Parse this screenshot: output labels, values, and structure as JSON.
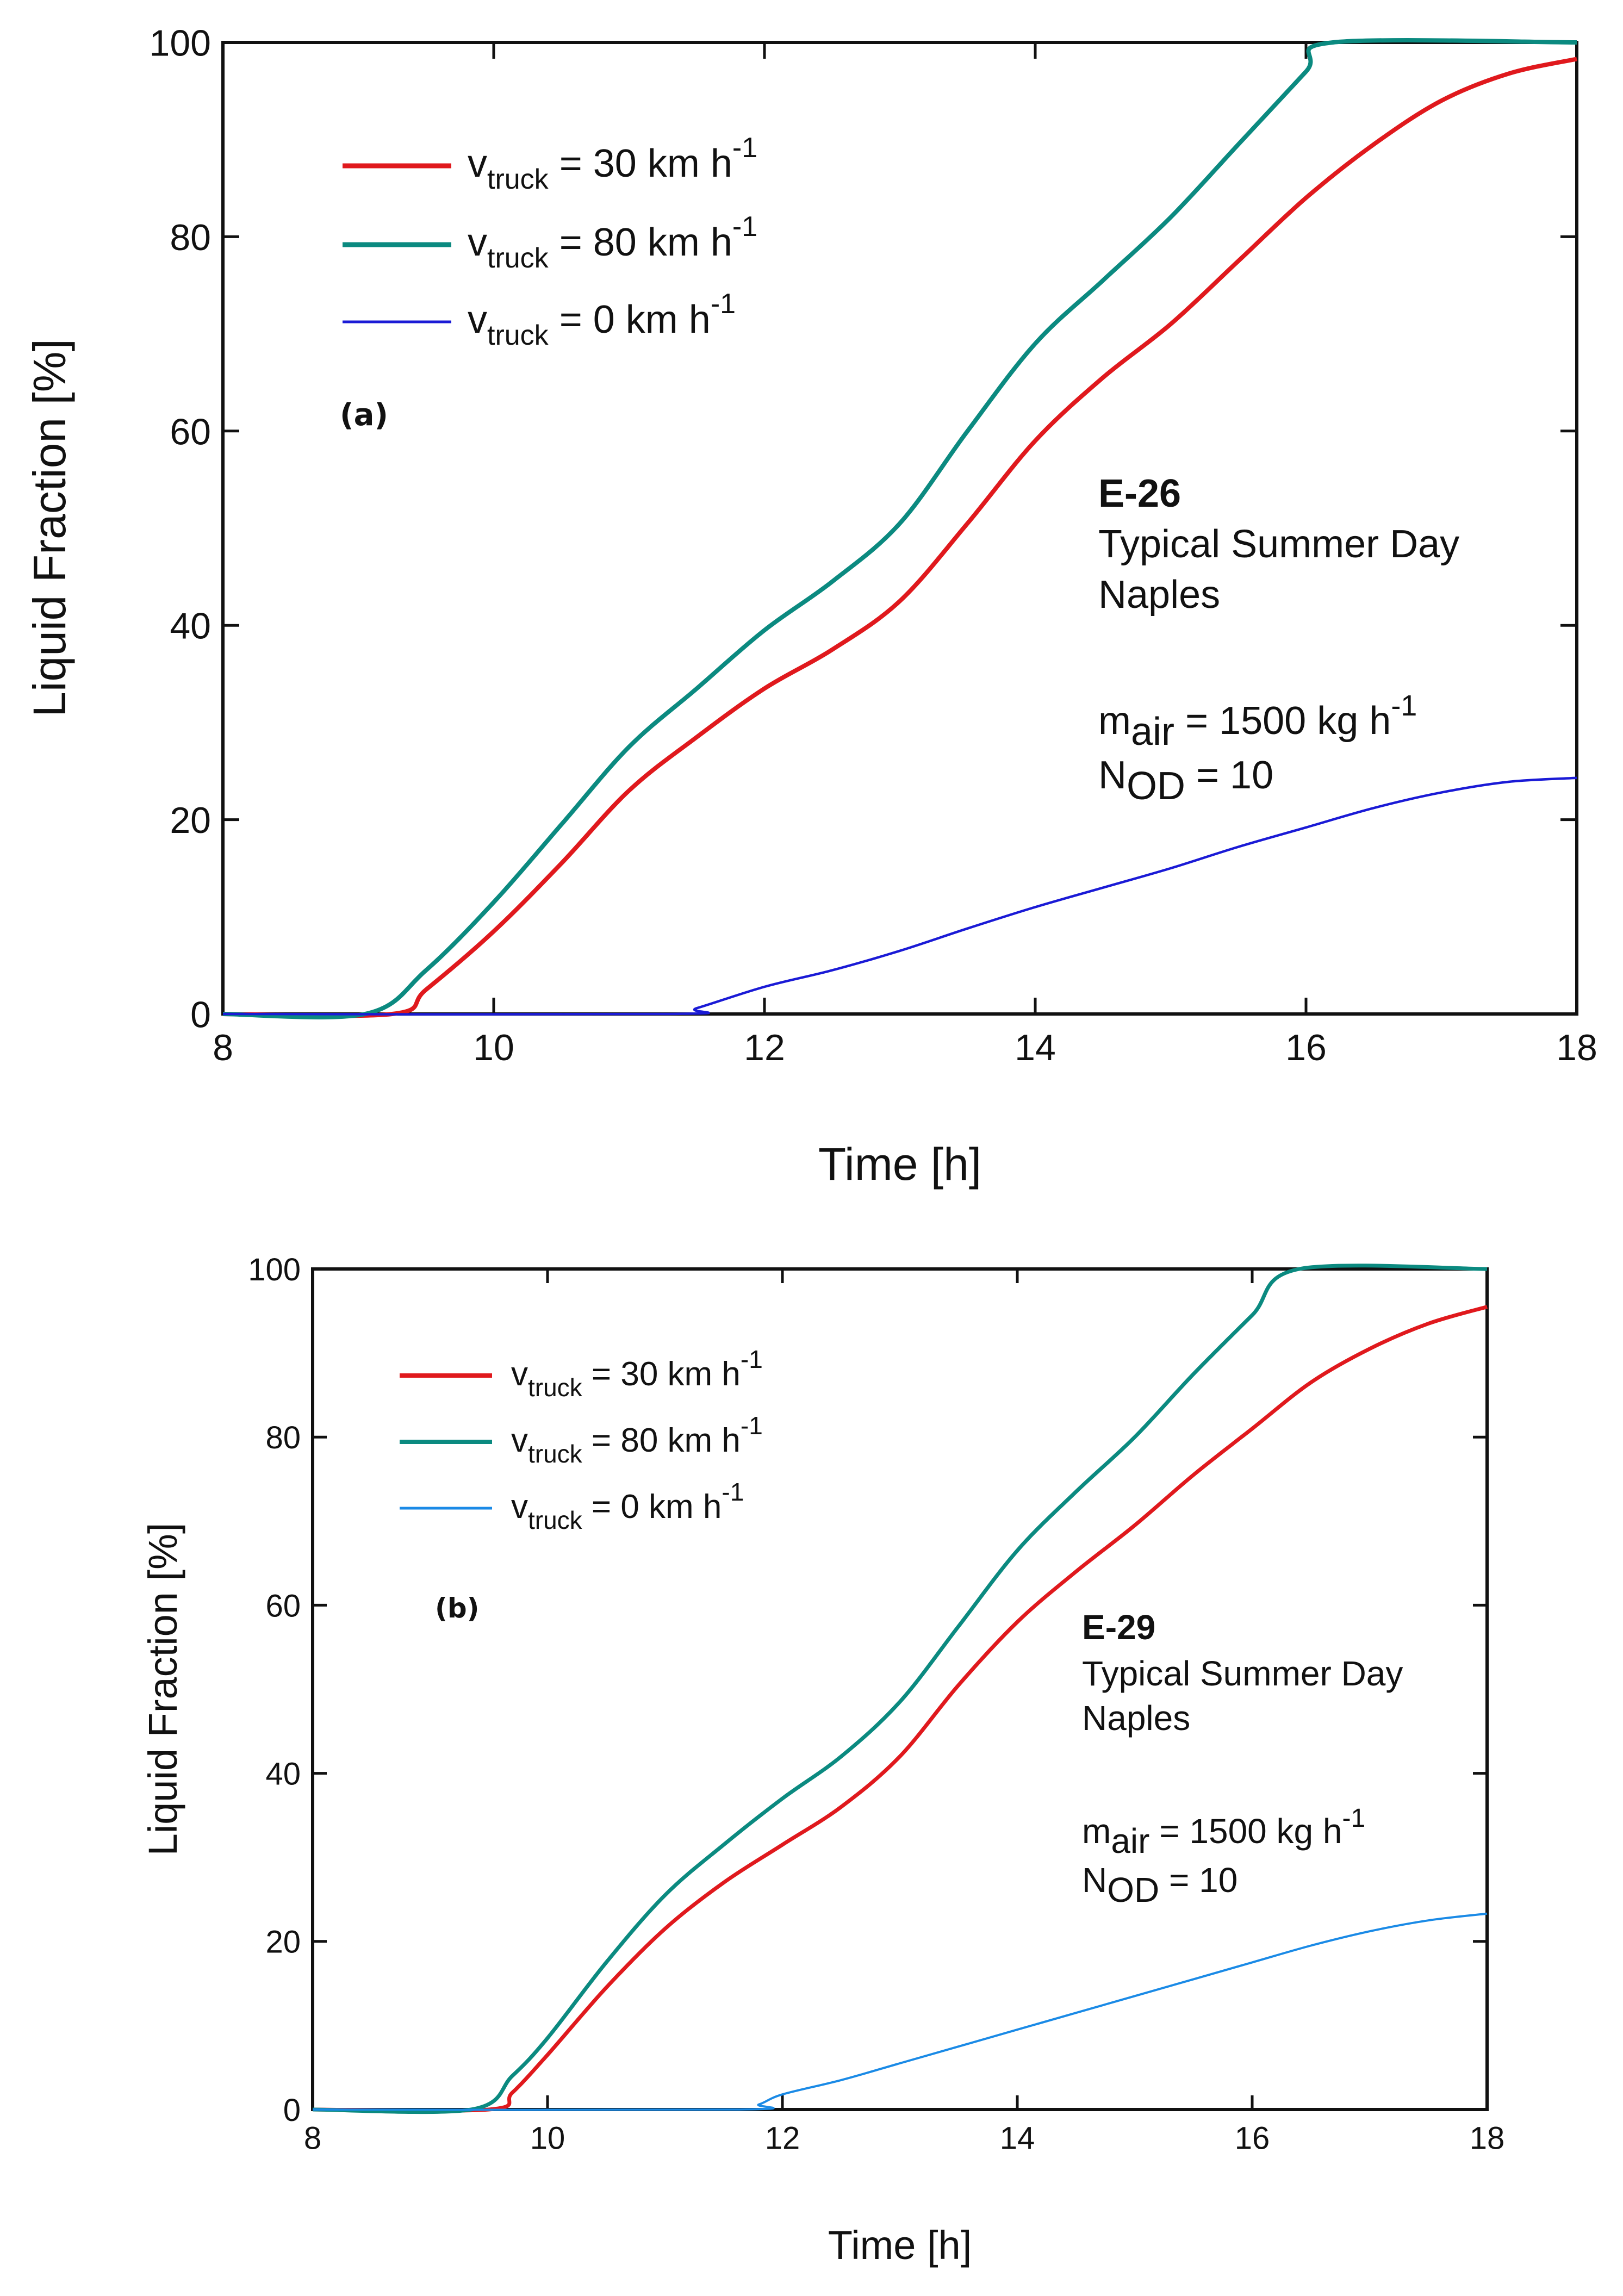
{
  "chart_data": [
    {
      "type": "line",
      "panel_label": "(a)",
      "xlabel": "Time [h]",
      "ylabel": "Liquid Fraction [%]",
      "xlim": [
        8,
        18
      ],
      "ylim": [
        0,
        100
      ],
      "x_ticks": [
        "8",
        "10",
        "12",
        "14",
        "16",
        "18"
      ],
      "y_ticks": [
        "0",
        "20",
        "40",
        "60",
        "80",
        "100"
      ],
      "annotation": {
        "model": "E-26",
        "condition": "Typical Summer Day",
        "location": "Naples",
        "mair_sym": "m",
        "mair_sub": "air",
        "mair_rest": " = 1500 kg h",
        "mair_sup": "-1",
        "nod_sym": "N",
        "nod_sub": "OD",
        "nod_rest": " = 10"
      },
      "series": [
        {
          "name": "v_truck = 30 km h^-1",
          "legend_sym": "v",
          "legend_sub": "truck",
          "legend_rest": " = 30 km h",
          "legend_sup": "-1",
          "color": "#e0191d",
          "points": [
            [
              8,
              0
            ],
            [
              9.25,
              0
            ],
            [
              9.5,
              2.5
            ],
            [
              10,
              8.5
            ],
            [
              10.5,
              15.5
            ],
            [
              11,
              23
            ],
            [
              11.5,
              28.5
            ],
            [
              12,
              33.5
            ],
            [
              12.5,
              37.5
            ],
            [
              13,
              42.5
            ],
            [
              13.5,
              50.5
            ],
            [
              14,
              59
            ],
            [
              14.5,
              65.5
            ],
            [
              15,
              71
            ],
            [
              15.5,
              77.5
            ],
            [
              16,
              84
            ],
            [
              16.5,
              89.5
            ],
            [
              17,
              94
            ],
            [
              17.5,
              96.8
            ],
            [
              18,
              98.3
            ]
          ]
        },
        {
          "name": "v_truck = 80 km h^-1",
          "legend_sym": "v",
          "legend_sub": "truck",
          "legend_rest": " = 80 km h",
          "legend_sup": "-1",
          "color": "#0b8a80",
          "points": [
            [
              8,
              0
            ],
            [
              9.05,
              0
            ],
            [
              9.5,
              4.5
            ],
            [
              10,
              11.5
            ],
            [
              10.5,
              19.5
            ],
            [
              11,
              27.5
            ],
            [
              11.5,
              33.5
            ],
            [
              12,
              39.5
            ],
            [
              12.5,
              44.5
            ],
            [
              13,
              50.5
            ],
            [
              13.5,
              60
            ],
            [
              14,
              69
            ],
            [
              14.5,
              75.5
            ],
            [
              15,
              82
            ],
            [
              15.5,
              89.5
            ],
            [
              16,
              97
            ],
            [
              16.2,
              100
            ],
            [
              18,
              100
            ]
          ]
        },
        {
          "name": "v_truck = 0 km h^-1",
          "legend_sym": "v",
          "legend_sub": "truck",
          "legend_rest": " = 0 km h",
          "legend_sup": "-1",
          "color": "#1a1ad6",
          "points": [
            [
              8,
              0
            ],
            [
              11.3,
              0
            ],
            [
              11.5,
              0.6
            ],
            [
              12,
              2.8
            ],
            [
              12.5,
              4.5
            ],
            [
              13,
              6.5
            ],
            [
              13.5,
              8.8
            ],
            [
              14,
              11
            ],
            [
              14.5,
              13
            ],
            [
              15,
              15
            ],
            [
              15.5,
              17.2
            ],
            [
              16,
              19.2
            ],
            [
              16.5,
              21.2
            ],
            [
              17,
              22.8
            ],
            [
              17.5,
              23.9
            ],
            [
              18,
              24.3
            ]
          ]
        }
      ]
    },
    {
      "type": "line",
      "panel_label": "(b)",
      "xlabel": "Time [h]",
      "ylabel": "Liquid Fraction [%]",
      "xlim": [
        8,
        18
      ],
      "ylim": [
        0,
        100
      ],
      "x_ticks": [
        "8",
        "10",
        "12",
        "14",
        "16",
        "18"
      ],
      "y_ticks": [
        "0",
        "20",
        "40",
        "60",
        "80",
        "100"
      ],
      "annotation": {
        "model": "E-29",
        "condition": "Typical Summer Day",
        "location": "Naples",
        "mair_sym": "m",
        "mair_sub": "air",
        "mair_rest": " = 1500 kg h",
        "mair_sup": "-1",
        "nod_sym": "N",
        "nod_sub": "OD",
        "nod_rest": " = 10"
      },
      "series": [
        {
          "name": "v_truck = 30 km h^-1",
          "legend_sym": "v",
          "legend_sub": "truck",
          "legend_rest": " = 30 km h",
          "legend_sup": "-1",
          "color": "#e0191d",
          "points": [
            [
              8,
              0
            ],
            [
              9.5,
              0
            ],
            [
              9.7,
              2
            ],
            [
              10,
              6.5
            ],
            [
              10.5,
              14.5
            ],
            [
              11,
              21.5
            ],
            [
              11.5,
              27
            ],
            [
              12,
              31.5
            ],
            [
              12.5,
              36
            ],
            [
              13,
              42
            ],
            [
              13.5,
              50.5
            ],
            [
              14,
              58
            ],
            [
              14.5,
              64
            ],
            [
              15,
              69.5
            ],
            [
              15.5,
              75.5
            ],
            [
              16,
              81
            ],
            [
              16.5,
              86.5
            ],
            [
              17,
              90.5
            ],
            [
              17.5,
              93.5
            ],
            [
              18,
              95.5
            ]
          ]
        },
        {
          "name": "v_truck = 80 km h^-1",
          "legend_sym": "v",
          "legend_sub": "truck",
          "legend_rest": " = 80 km h",
          "legend_sup": "-1",
          "color": "#0b8a80",
          "points": [
            [
              8,
              0
            ],
            [
              9.35,
              0
            ],
            [
              9.7,
              4
            ],
            [
              10,
              8.5
            ],
            [
              10.5,
              17.5
            ],
            [
              11,
              25.5
            ],
            [
              11.5,
              31.5
            ],
            [
              12,
              37
            ],
            [
              12.5,
              42
            ],
            [
              13,
              48.5
            ],
            [
              13.5,
              57.5
            ],
            [
              14,
              66.5
            ],
            [
              14.5,
              73.5
            ],
            [
              15,
              80
            ],
            [
              15.5,
              87.5
            ],
            [
              16,
              94.5
            ],
            [
              16.4,
              100
            ],
            [
              18,
              100
            ]
          ]
        },
        {
          "name": "v_truck = 0 km h^-1",
          "legend_sym": "v",
          "legend_sub": "truck",
          "legend_rest": " = 0 km h",
          "legend_sup": "-1",
          "color": "#1a8ae6",
          "points": [
            [
              8,
              0
            ],
            [
              11.6,
              0
            ],
            [
              11.8,
              0.6
            ],
            [
              12,
              1.8
            ],
            [
              12.5,
              3.5
            ],
            [
              13,
              5.5
            ],
            [
              13.5,
              7.5
            ],
            [
              14,
              9.5
            ],
            [
              14.5,
              11.5
            ],
            [
              15,
              13.5
            ],
            [
              15.5,
              15.5
            ],
            [
              16,
              17.5
            ],
            [
              16.5,
              19.5
            ],
            [
              17,
              21.2
            ],
            [
              17.5,
              22.5
            ],
            [
              18,
              23.3
            ]
          ]
        }
      ]
    }
  ]
}
